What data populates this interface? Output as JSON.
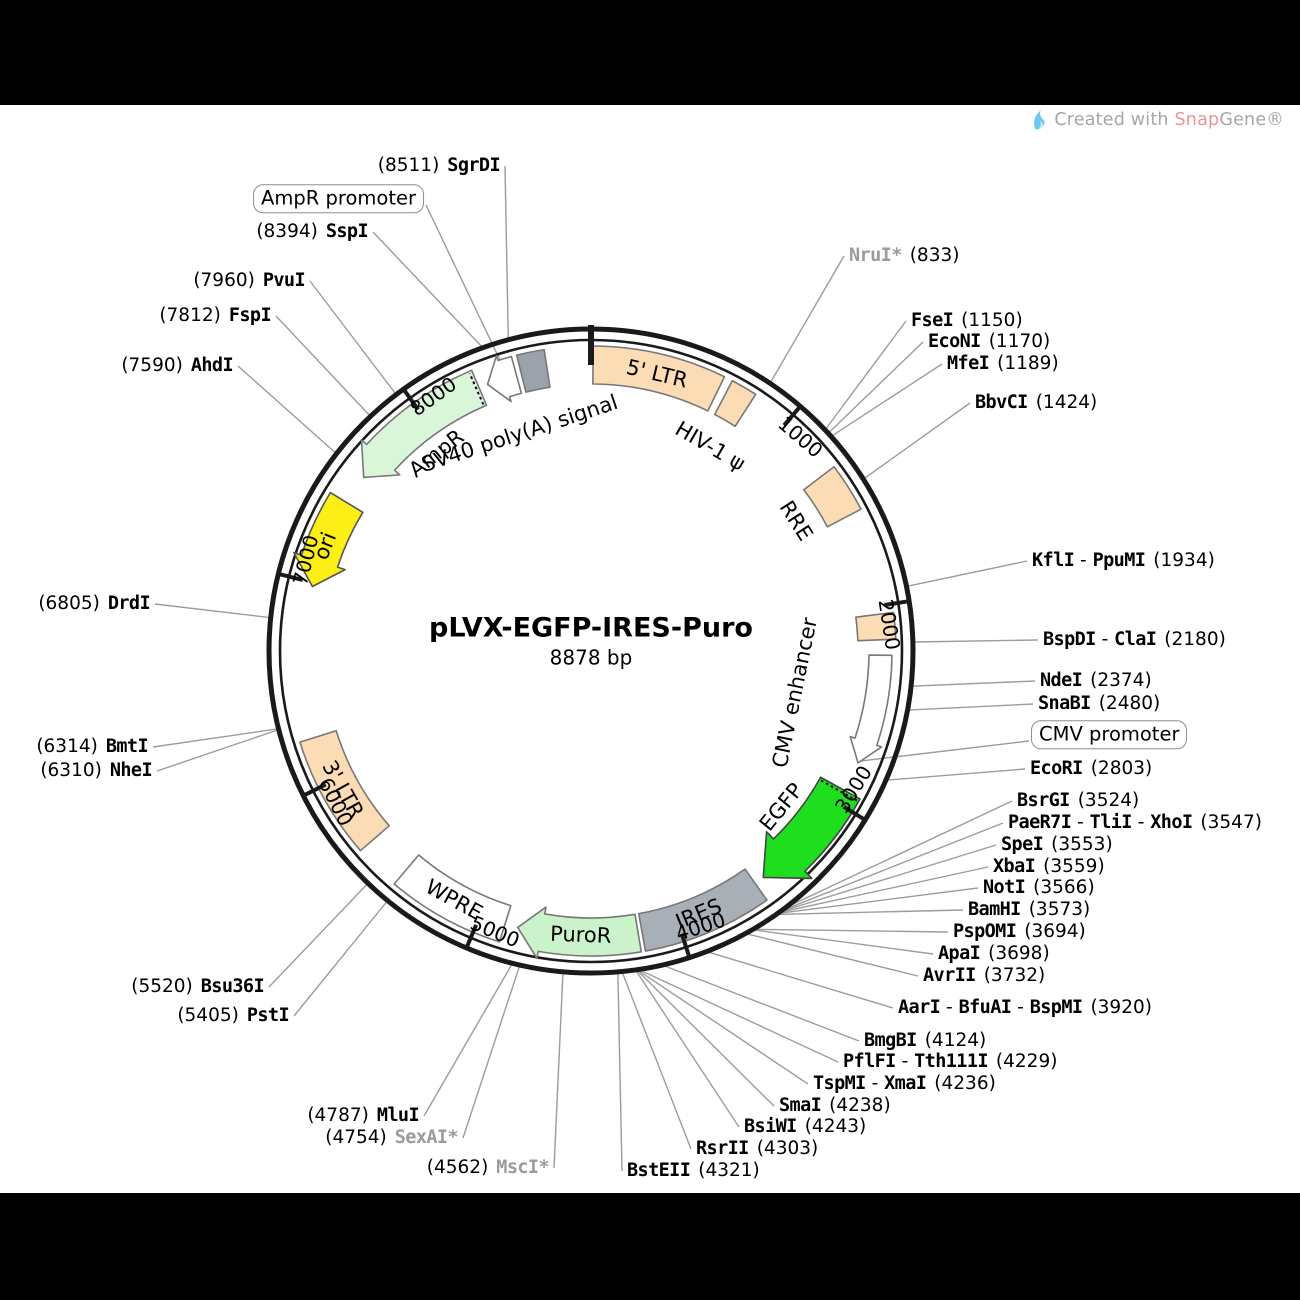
{
  "credit": {
    "prefix": "Created with",
    "brand_a": "Snap",
    "brand_b": "Gene®",
    "logo_color": "#6BC8EE",
    "snap_color": "#EA9494",
    "text_color": "#A6A6A6"
  },
  "plasmid": {
    "title": "pLVX-EGFP-IRES-Puro",
    "length": "8878 bp",
    "total_bp": 8878
  },
  "ticks": [
    1000,
    2000,
    3000,
    4000,
    5000,
    6000,
    7000,
    8000
  ],
  "features": [
    {
      "name": "5' LTR",
      "start": 10,
      "end": 640,
      "shape": "box",
      "fill": "#FBDCB4",
      "label_bp": 330,
      "label_r": 284
    },
    {
      "name": "HIV-1 ψ",
      "start": 681,
      "end": 806,
      "shape": "box",
      "fill": "#FBDCB4",
      "label_bp": 745,
      "label_r": 236
    },
    {
      "name": "RRE",
      "start": 1303,
      "end": 1536,
      "shape": "box",
      "fill": "#FBDCB4",
      "label_bp": 1420,
      "label_r": 242
    },
    {
      "name": "",
      "start": 2040,
      "end": 2165,
      "shape": "box",
      "fill": "#FBDCB4"
    },
    {
      "name": "CMV enhancer",
      "start": 2240,
      "end": 2780,
      "shape": "arrow",
      "dir": "cw",
      "fill": "#FFFFFF",
      "label_bp": 2505,
      "label_r": 209,
      "size": "thin"
    },
    {
      "name": "EGFP",
      "start": 2930,
      "end": 3520,
      "shape": "arrow",
      "dir": "cw",
      "fill": "#1EDE1E",
      "label_bp": 3190,
      "label_r": 247,
      "dotted_tail": true,
      "size": "big"
    },
    {
      "name": "IRES",
      "start": 3570,
      "end": 4185,
      "shape": "box",
      "fill": "#A9AFB7",
      "label_bp": 3890,
      "label_r": 285
    },
    {
      "name": "PuroR",
      "start": 4205,
      "end": 4805,
      "shape": "arrow",
      "dir": "cw",
      "fill": "#CBF3CB",
      "label_bp": 4490,
      "label_r": 285
    },
    {
      "name": "WPRE",
      "start": 4870,
      "end": 5430,
      "shape": "box",
      "fill": "#FFFFFF",
      "label_bp": 5150,
      "label_r": 285
    },
    {
      "name": "3' LTR",
      "start": 5650,
      "end": 6230,
      "shape": "box",
      "fill": "#FBDCB4",
      "label_bp": 5940,
      "label_r": 285
    },
    {
      "name": "ori",
      "start": 6980,
      "end": 7430,
      "shape": "arrow",
      "dir": "ccw",
      "fill": "#FCEF16",
      "label_bp": 7190,
      "label_r": 285
    },
    {
      "name": "AmpR",
      "start": 7580,
      "end": 8310,
      "shape": "arrow",
      "dir": "ccw",
      "fill": "#D9F6D9",
      "label_bp": 7940,
      "label_r": 250,
      "dotted_tail": true
    },
    {
      "name": "SV40 poly(A) signal",
      "start": 8355,
      "end": 8505,
      "shape": "arrow",
      "dir": "ccw",
      "fill": "#FFFFFF",
      "label_bp": 8430,
      "label_r": 228,
      "size": "small"
    },
    {
      "name": "",
      "start": 8530,
      "end": 8660,
      "shape": "box",
      "fill": "#9BA2AB"
    }
  ],
  "callouts": [
    {
      "label": "AmpR promoter",
      "bp": 8460
    },
    {
      "label": "CMV promoter",
      "bp": 2770
    }
  ],
  "sites_left": [
    {
      "pos": "(8511)",
      "name": "SgrDI",
      "bp": 8511
    },
    {
      "pos": "(8394)",
      "name": "SspI",
      "bp": 8394
    },
    {
      "pos": "(7960)",
      "name": "PvuI",
      "bp": 7960
    },
    {
      "pos": "(7812)",
      "name": "FspI",
      "bp": 7812
    },
    {
      "pos": "(7590)",
      "name": "AhdI",
      "bp": 7590
    },
    {
      "pos": "(6805)",
      "name": "DrdI",
      "bp": 6805
    },
    {
      "pos": "(6314)",
      "name": "BmtI",
      "bp": 6314
    },
    {
      "pos": "(6310)",
      "name": "NheI",
      "bp": 6310
    },
    {
      "pos": "(5520)",
      "name": "Bsu36I",
      "bp": 5520
    },
    {
      "pos": "(5405)",
      "name": "PstI",
      "bp": 5405
    },
    {
      "pos": "(4787)",
      "name": "MluI",
      "bp": 4787
    },
    {
      "pos": "(4754)",
      "name": "SexAI*",
      "bp": 4754,
      "muted": true
    },
    {
      "pos": "(4562)",
      "name": "MscI*",
      "bp": 4562,
      "muted": true
    }
  ],
  "sites_right": [
    {
      "name": "NruI*",
      "pos": "(833)",
      "bp": 833,
      "muted": true
    },
    {
      "name": "FseI",
      "pos": "(1150)",
      "bp": 1150
    },
    {
      "name": "EcoNI",
      "pos": "(1170)",
      "bp": 1170
    },
    {
      "name": "MfeI",
      "pos": "(1189)",
      "bp": 1189
    },
    {
      "name": "BbvCI",
      "pos": "(1424)",
      "bp": 1424
    },
    {
      "name": "KflI - PpuMI",
      "pos": "(1934)",
      "bp": 1934
    },
    {
      "name": "BspDI - ClaI",
      "pos": "(2180)",
      "bp": 2180
    },
    {
      "name": "NdeI",
      "pos": "(2374)",
      "bp": 2374
    },
    {
      "name": "SnaBI",
      "pos": "(2480)",
      "bp": 2480
    },
    {
      "name": "EcoRI",
      "pos": "(2803)",
      "bp": 2803
    },
    {
      "name": "BsrGI",
      "pos": "(3524)",
      "bp": 3524
    },
    {
      "name": "PaeR7I - TliI - XhoI",
      "pos": "(3547)",
      "bp": 3547
    },
    {
      "name": "SpeI",
      "pos": "(3553)",
      "bp": 3553
    },
    {
      "name": "XbaI",
      "pos": "(3559)",
      "bp": 3559
    },
    {
      "name": "NotI",
      "pos": "(3566)",
      "bp": 3566
    },
    {
      "name": "BamHI",
      "pos": "(3573)",
      "bp": 3573
    },
    {
      "name": "PspOMI",
      "pos": "(3694)",
      "bp": 3694
    },
    {
      "name": "ApaI",
      "pos": "(3698)",
      "bp": 3698
    },
    {
      "name": "AvrII",
      "pos": "(3732)",
      "bp": 3732
    },
    {
      "name": "AarI - BfuAI - BspMI",
      "pos": "(3920)",
      "bp": 3920
    },
    {
      "name": "BmgBI",
      "pos": "(4124)",
      "bp": 4124
    },
    {
      "name": "PflFI - Tth111I",
      "pos": "(4229)",
      "bp": 4229
    },
    {
      "name": "TspMI - XmaI",
      "pos": "(4236)",
      "bp": 4236
    },
    {
      "name": "SmaI",
      "pos": "(4238)",
      "bp": 4238
    },
    {
      "name": "BsiWI",
      "pos": "(4243)",
      "bp": 4243
    },
    {
      "name": "RsrII",
      "pos": "(4303)",
      "bp": 4303
    },
    {
      "name": "BstEII",
      "pos": "(4321)",
      "bp": 4321
    }
  ]
}
